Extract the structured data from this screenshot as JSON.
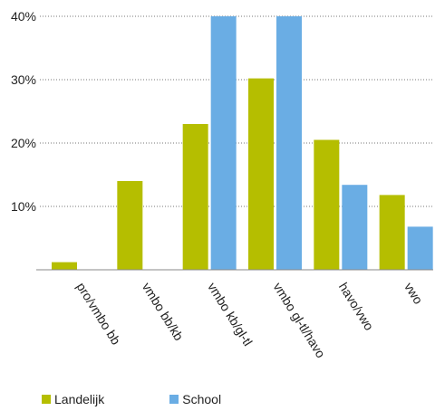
{
  "chart_data": {
    "type": "bar",
    "categories": [
      "pro/vmbo bb",
      "vmbo bb/kb",
      "vmbo kb/gl-tl",
      "vmbo gl-tl/havo",
      "havo/vwo",
      "vwo"
    ],
    "series": [
      {
        "name": "Landelijk",
        "color": "#b5be00",
        "values": [
          1.2,
          14.0,
          23.0,
          30.2,
          20.5,
          11.8
        ]
      },
      {
        "name": "School",
        "color": "#6aade4",
        "values": [
          0,
          0,
          40,
          40,
          13.4,
          6.8
        ]
      }
    ],
    "yticks": [
      "10%",
      "20%",
      "30%",
      "40%"
    ],
    "ylim": [
      0,
      40
    ],
    "grid": true,
    "legend_position": "bottom-left"
  }
}
